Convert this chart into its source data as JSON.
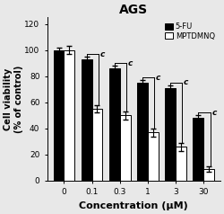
{
  "title": "AGS",
  "xlabel": "Concentration (μM)",
  "ylabel": "Cell viability\n(% of control)",
  "categories": [
    "0",
    "0.1",
    "0.3",
    "1",
    "3",
    "30"
  ],
  "fu_values": [
    100,
    93,
    86,
    75,
    71,
    48
  ],
  "fu_errors": [
    2,
    2,
    2,
    2,
    2,
    2
  ],
  "mpt_values": [
    100,
    55,
    50,
    37,
    26,
    9
  ],
  "mpt_errors": [
    3,
    3,
    3,
    3,
    3,
    2
  ],
  "ylim": [
    0,
    125
  ],
  "yticks": [
    0,
    20,
    40,
    60,
    80,
    100,
    120
  ],
  "bar_width": 0.38,
  "fu_color": "#000000",
  "mpt_color": "#ffffff",
  "legend_fu": "5-FU",
  "legend_mpt": "MPTDMNQ",
  "significance_label": "c",
  "background_color": "#e8e8e8"
}
